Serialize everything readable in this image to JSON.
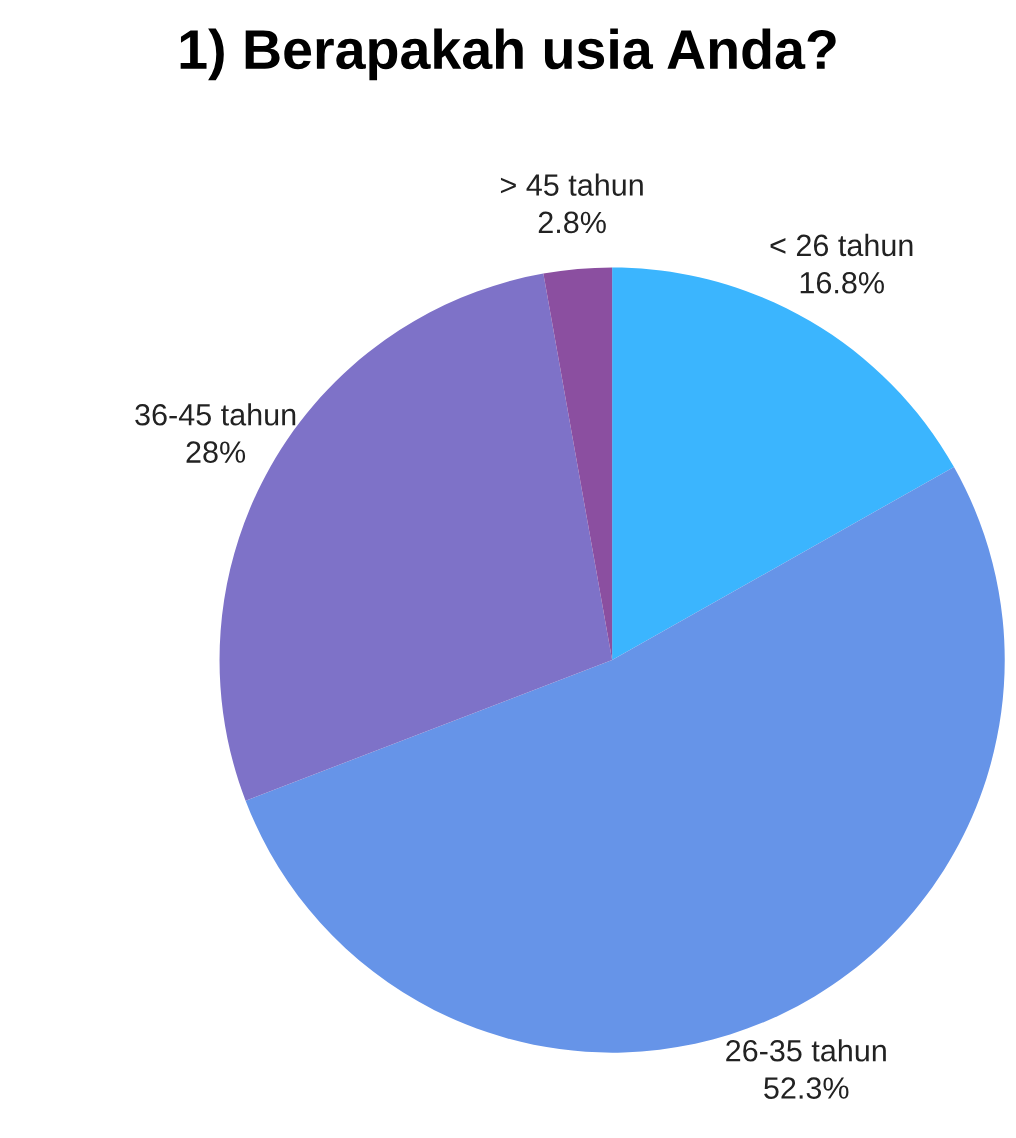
{
  "chart_data": {
    "type": "pie",
    "title": "1) Berapakah usia Anda?",
    "categories": [
      "< 26 tahun",
      "26-35 tahun",
      "36-45 tahun",
      "> 45 tahun"
    ],
    "values": [
      16.8,
      52.3,
      28,
      2.8
    ],
    "value_labels": [
      "16.8%",
      "52.3%",
      "28%",
      "2.8%"
    ],
    "colors": [
      "#3bb5fe",
      "#6694e8",
      "#7e72c8",
      "#8b4fa0"
    ],
    "legend": false
  }
}
